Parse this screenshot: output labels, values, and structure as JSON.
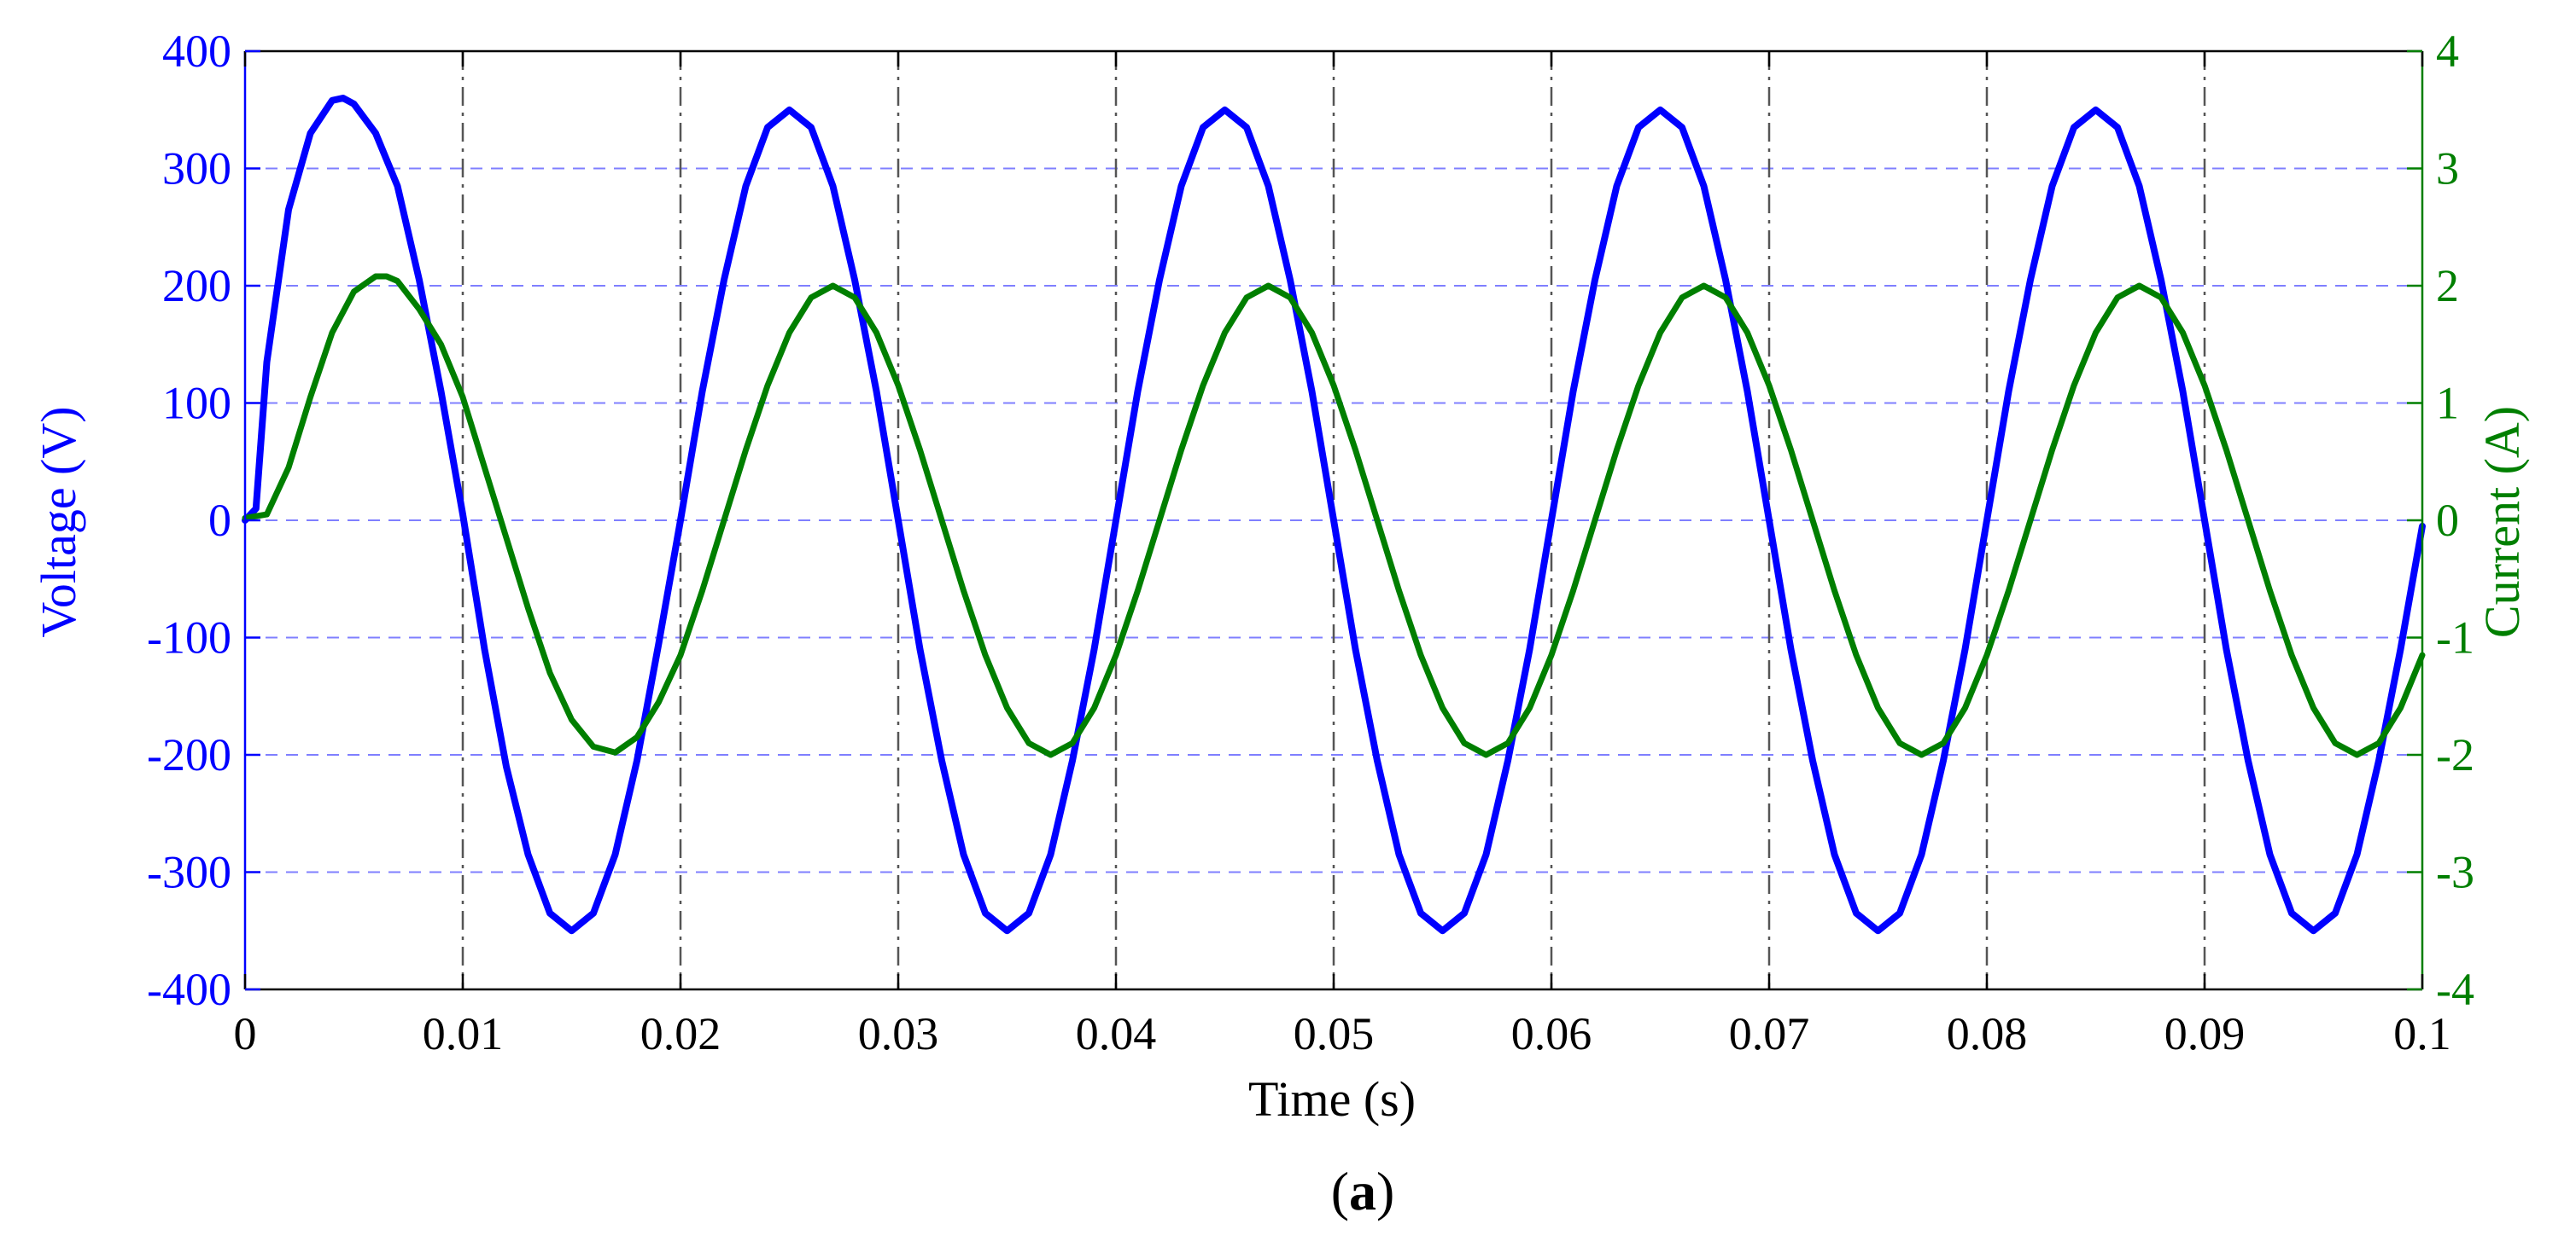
{
  "chart_data": {
    "type": "line",
    "title": "",
    "xlabel": "Time (s)",
    "ylabel_left": "Voltage (V)",
    "ylabel_right": "Current (A)",
    "caption": {
      "open": "(",
      "letter": "a",
      "close": ")"
    },
    "xlim": [
      0,
      0.1
    ],
    "ylim_left": [
      -400,
      400
    ],
    "ylim_right": [
      -4,
      4
    ],
    "xticks": [
      "0",
      "0.01",
      "0.02",
      "0.03",
      "0.04",
      "0.05",
      "0.06",
      "0.07",
      "0.08",
      "0.09",
      "0.1"
    ],
    "yticks_left": [
      "400",
      "300",
      "200",
      "100",
      "0",
      "-100",
      "-200",
      "-300",
      "-400"
    ],
    "yticks_right": [
      "4",
      "3",
      "2",
      "1",
      "0",
      "-1",
      "-2",
      "-3",
      "-4"
    ],
    "grid": true,
    "legend": "none",
    "colors": {
      "voltage": "#0000ff",
      "current": "#007f00",
      "grid_h": "#7f7fff",
      "grid_v": "#555555"
    },
    "series": [
      {
        "axis": "left",
        "color": "#0000ff",
        "frequency_hz": 50,
        "amplitude": 350,
        "x": [
          0,
          0.0005,
          0.001,
          0.002,
          0.003,
          0.004,
          0.0045,
          0.005,
          0.006,
          0.007,
          0.008,
          0.009,
          0.01,
          0.011,
          0.012,
          0.013,
          0.014,
          0.015,
          0.016,
          0.017,
          0.018,
          0.019,
          0.02,
          0.021,
          0.022,
          0.023,
          0.024,
          0.025,
          0.026,
          0.027,
          0.028,
          0.029,
          0.03,
          0.031,
          0.032,
          0.033,
          0.034,
          0.035,
          0.036,
          0.037,
          0.038,
          0.039,
          0.04,
          0.041,
          0.042,
          0.043,
          0.044,
          0.045,
          0.046,
          0.047,
          0.048,
          0.049,
          0.05,
          0.051,
          0.052,
          0.053,
          0.054,
          0.055,
          0.056,
          0.057,
          0.058,
          0.059,
          0.06,
          0.061,
          0.062,
          0.063,
          0.064,
          0.065,
          0.066,
          0.067,
          0.068,
          0.069,
          0.07,
          0.071,
          0.072,
          0.073,
          0.074,
          0.075,
          0.076,
          0.077,
          0.078,
          0.079,
          0.08,
          0.081,
          0.082,
          0.083,
          0.084,
          0.085,
          0.086,
          0.087,
          0.088,
          0.089,
          0.09,
          0.091,
          0.092,
          0.093,
          0.094,
          0.095,
          0.096,
          0.097,
          0.098,
          0.099,
          0.1
        ],
        "values": [
          0,
          10,
          135,
          265,
          330,
          358,
          360,
          355,
          330,
          285,
          205,
          110,
          5,
          -110,
          -210,
          -285,
          -335,
          -350,
          -335,
          -285,
          -205,
          -105,
          0,
          110,
          205,
          285,
          335,
          350,
          335,
          285,
          205,
          110,
          0,
          -110,
          -205,
          -285,
          -335,
          -350,
          -335,
          -285,
          -205,
          -110,
          0,
          110,
          205,
          285,
          335,
          350,
          335,
          285,
          205,
          110,
          0,
          -110,
          -205,
          -285,
          -335,
          -350,
          -335,
          -285,
          -205,
          -110,
          0,
          110,
          205,
          285,
          335,
          350,
          335,
          285,
          205,
          110,
          0,
          -110,
          -205,
          -285,
          -335,
          -350,
          -335,
          -285,
          -205,
          -110,
          0,
          110,
          205,
          285,
          335,
          350,
          335,
          285,
          205,
          110,
          0,
          -110,
          -205,
          -285,
          -335,
          -350,
          -335,
          -285,
          -205,
          -110,
          -5
        ]
      },
      {
        "axis": "right",
        "color": "#007f00",
        "frequency_hz": 50,
        "amplitude": 2.0,
        "x": [
          0,
          0.001,
          0.002,
          0.003,
          0.004,
          0.005,
          0.006,
          0.0065,
          0.007,
          0.008,
          0.009,
          0.01,
          0.011,
          0.012,
          0.013,
          0.014,
          0.015,
          0.016,
          0.017,
          0.018,
          0.019,
          0.02,
          0.021,
          0.022,
          0.023,
          0.024,
          0.025,
          0.026,
          0.027,
          0.028,
          0.029,
          0.03,
          0.031,
          0.032,
          0.033,
          0.034,
          0.035,
          0.036,
          0.037,
          0.038,
          0.039,
          0.04,
          0.041,
          0.042,
          0.043,
          0.044,
          0.045,
          0.046,
          0.047,
          0.048,
          0.049,
          0.05,
          0.051,
          0.052,
          0.053,
          0.054,
          0.055,
          0.056,
          0.057,
          0.058,
          0.059,
          0.06,
          0.061,
          0.062,
          0.063,
          0.064,
          0.065,
          0.066,
          0.067,
          0.068,
          0.069,
          0.07,
          0.071,
          0.072,
          0.073,
          0.074,
          0.075,
          0.076,
          0.077,
          0.078,
          0.079,
          0.08,
          0.081,
          0.082,
          0.083,
          0.084,
          0.085,
          0.086,
          0.087,
          0.088,
          0.089,
          0.09,
          0.091,
          0.092,
          0.093,
          0.094,
          0.095,
          0.096,
          0.097,
          0.098,
          0.099,
          0.1
        ],
        "values": [
          0.02,
          0.05,
          0.45,
          1.05,
          1.6,
          1.95,
          2.08,
          2.08,
          2.04,
          1.8,
          1.5,
          1.05,
          0.45,
          -0.15,
          -0.75,
          -1.3,
          -1.7,
          -1.93,
          -1.98,
          -1.85,
          -1.55,
          -1.15,
          -0.6,
          0.0,
          0.6,
          1.15,
          1.6,
          1.9,
          2.0,
          1.9,
          1.6,
          1.15,
          0.6,
          0.0,
          -0.6,
          -1.15,
          -1.6,
          -1.9,
          -2.0,
          -1.9,
          -1.6,
          -1.15,
          -0.6,
          0.0,
          0.6,
          1.15,
          1.6,
          1.9,
          2.0,
          1.9,
          1.6,
          1.15,
          0.6,
          0.0,
          -0.6,
          -1.15,
          -1.6,
          -1.9,
          -2.0,
          -1.9,
          -1.6,
          -1.15,
          -0.6,
          0.0,
          0.6,
          1.15,
          1.6,
          1.9,
          2.0,
          1.9,
          1.6,
          1.15,
          0.6,
          0.0,
          -0.6,
          -1.15,
          -1.6,
          -1.9,
          -2.0,
          -1.9,
          -1.6,
          -1.15,
          -0.6,
          0.0,
          0.6,
          1.15,
          1.6,
          1.9,
          2.0,
          1.9,
          1.6,
          1.15,
          0.6,
          0.0,
          -0.6,
          -1.15,
          -1.6,
          -1.9,
          -2.0,
          -1.9,
          -1.6,
          -1.15
        ]
      }
    ]
  }
}
